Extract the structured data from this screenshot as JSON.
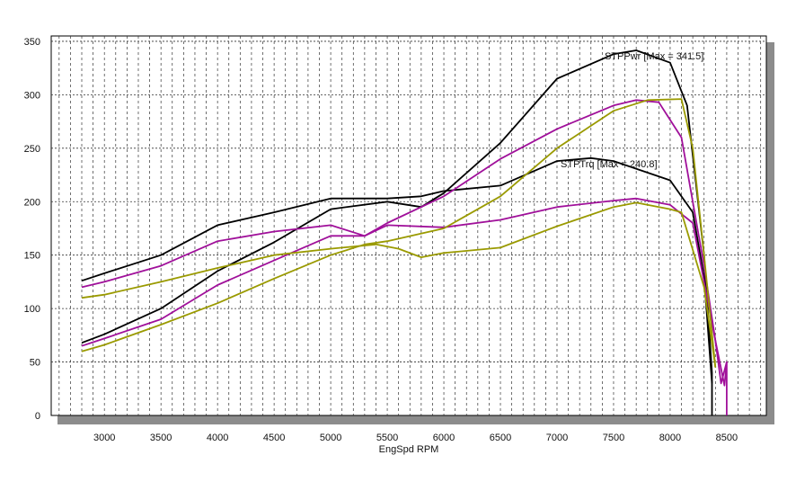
{
  "chart_data": {
    "type": "line",
    "xlabel": "EngSpd RPM",
    "ylabel": "",
    "xlim": [
      2530,
      8850
    ],
    "ylim": [
      0,
      355
    ],
    "xticks": [
      3000,
      3500,
      4000,
      4500,
      5000,
      5500,
      6000,
      6500,
      7000,
      7500,
      8000,
      8500
    ],
    "yticks": [
      0,
      50,
      100,
      150,
      200,
      250,
      300,
      350
    ],
    "grid": true,
    "annotations": [
      {
        "text": "STPPwr [Max = 341.5]",
        "x": 7700,
        "y": 341.5
      },
      {
        "text": "STPTrq [Max = 240.8]",
        "x": 7300,
        "y": 240.8
      }
    ],
    "series": [
      {
        "color": "#000000",
        "x": [
          2800,
          3000,
          3500,
          4000,
          4500,
          5000,
          5500,
          5800,
          6000,
          6500,
          7000,
          7300,
          7500,
          8000,
          8200,
          8300,
          8370
        ],
        "y": [
          126,
          133,
          150,
          178,
          190,
          203,
          203,
          205,
          210,
          215,
          238,
          240.8,
          238,
          220,
          190,
          130,
          30
        ]
      },
      {
        "color": "#000000",
        "x": [
          2800,
          3000,
          3500,
          4000,
          4500,
          5000,
          5500,
          5800,
          6000,
          6500,
          7000,
          7500,
          7700,
          8000,
          8150,
          8300,
          8370,
          8370
        ],
        "y": [
          68,
          76,
          100,
          135,
          162,
          193,
          200,
          195,
          208,
          255,
          315,
          338,
          341.5,
          330,
          290,
          150,
          40,
          0
        ]
      },
      {
        "color": "#a0109a",
        "x": [
          2800,
          3000,
          3500,
          4000,
          4500,
          5000,
          5300,
          5500,
          6000,
          6500,
          7000,
          7500,
          7700,
          8000,
          8200,
          8400,
          8450,
          8500
        ],
        "y": [
          120,
          125,
          140,
          163,
          172,
          178,
          168,
          178,
          176,
          183,
          195,
          201,
          203,
          197,
          180,
          70,
          30,
          50
        ]
      },
      {
        "color": "#a0109a",
        "x": [
          2800,
          3000,
          3500,
          4000,
          4500,
          5000,
          5300,
          5500,
          6000,
          6500,
          7000,
          7500,
          7700,
          7900,
          8100,
          8300,
          8400,
          8480,
          8500,
          8500
        ],
        "y": [
          65,
          72,
          90,
          122,
          145,
          168,
          168,
          180,
          205,
          240,
          268,
          290,
          295,
          293,
          260,
          140,
          70,
          28,
          50,
          0
        ]
      },
      {
        "color": "#9a9a00",
        "x": [
          2800,
          3000,
          3500,
          4000,
          4500,
          5000,
          5400,
          5600,
          5800,
          6000,
          6500,
          7000,
          7500,
          7700,
          8000,
          8100,
          8300,
          8400
        ],
        "y": [
          110,
          113,
          125,
          138,
          150,
          156,
          160,
          156,
          148,
          152,
          157,
          177,
          195,
          199,
          193,
          190,
          120,
          45
        ]
      },
      {
        "color": "#9a9a00",
        "x": [
          2800,
          3000,
          3500,
          4000,
          4500,
          5000,
          5300,
          5500,
          6000,
          6500,
          7000,
          7500,
          7800,
          8100,
          8200,
          8300,
          8400
        ],
        "y": [
          60,
          66,
          85,
          105,
          128,
          150,
          160,
          163,
          175,
          205,
          250,
          285,
          295,
          296,
          250,
          150,
          45
        ]
      }
    ]
  }
}
